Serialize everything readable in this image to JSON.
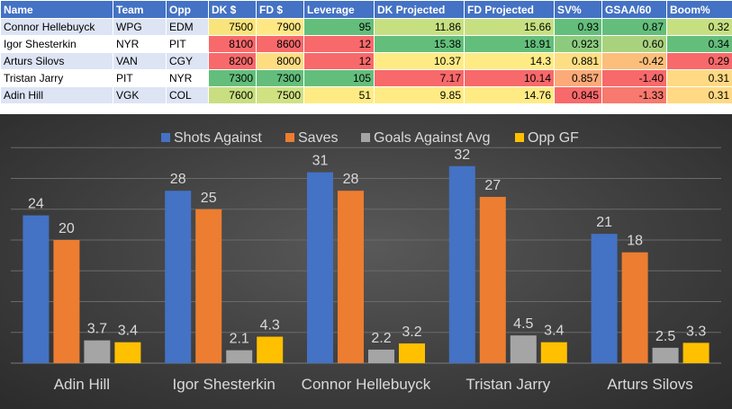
{
  "table": {
    "columns": [
      "Name",
      "Team",
      "Opp",
      "DK $",
      "FD $",
      "Leverage",
      "DK Projected",
      "FD Projected",
      "SV%",
      "GSAA/60",
      "Boom%"
    ],
    "rows": [
      [
        "Connor Hellebuyck",
        "WPG",
        "EDM",
        "7500",
        "7900",
        "95",
        "11.86",
        "15.66",
        "0.93",
        "0.87",
        "0.32"
      ],
      [
        "Igor Shesterkin",
        "NYR",
        "PIT",
        "8100",
        "8600",
        "12",
        "15.38",
        "18.91",
        "0.923",
        "0.60",
        "0.34"
      ],
      [
        "Arturs Silovs",
        "VAN",
        "CGY",
        "8200",
        "8000",
        "12",
        "10.37",
        "14.3",
        "0.881",
        "-0.42",
        "0.29"
      ],
      [
        "Tristan Jarry",
        "PIT",
        "NYR",
        "7300",
        "7300",
        "105",
        "7.17",
        "10.14",
        "0.857",
        "-1.40",
        "0.31"
      ],
      [
        "Adin Hill",
        "VGK",
        "COL",
        "7600",
        "7500",
        "51",
        "9.85",
        "14.76",
        "0.845",
        "-1.33",
        "0.31"
      ]
    ],
    "cell_colors": [
      [
        null,
        null,
        null,
        "#f8e47a",
        "#ffe884",
        "#63be7b",
        "#c6e081",
        "#c6e081",
        "#63be7b",
        "#63be7b",
        "#c6e081"
      ],
      [
        null,
        null,
        null,
        "#f8696b",
        "#f8696b",
        "#f8696b",
        "#63be7b",
        "#63be7b",
        "#8ccb7e",
        "#a9d27f",
        "#63be7b"
      ],
      [
        null,
        null,
        null,
        "#f8696b",
        "#fedd81",
        "#f8696b",
        "#ffeb84",
        "#ffeb84",
        "#fede82",
        "#fbbf7b",
        "#f8696b"
      ],
      [
        null,
        null,
        null,
        "#63be7b",
        "#63be7b",
        "#63be7b",
        "#f8696b",
        "#f8696b",
        "#fcaa78",
        "#f8696b",
        "#ffd983"
      ],
      [
        null,
        null,
        null,
        "#c9de80",
        "#d0e181",
        "#ffeb84",
        "#ffeb84",
        "#ffeb84",
        "#f8696b",
        "#f8796d",
        "#ffd983"
      ]
    ]
  },
  "chart_data": {
    "type": "bar",
    "categories": [
      "Adin Hill",
      "Igor Shesterkin",
      "Connor Hellebuyck",
      "Tristan Jarry",
      "Arturs Silovs"
    ],
    "series": [
      {
        "name": "Shots Against",
        "values": [
          24,
          28,
          31,
          32,
          21
        ],
        "color": "#4472c4"
      },
      {
        "name": "Saves",
        "values": [
          20,
          25,
          28,
          27,
          18
        ],
        "color": "#ed7d31"
      },
      {
        "name": "Goals Against Avg",
        "values": [
          3.7,
          2.1,
          2.2,
          4.5,
          2.5
        ],
        "color": "#a5a5a5"
      },
      {
        "name": "Opp GF",
        "values": [
          3.4,
          4.3,
          3.2,
          3.4,
          3.3
        ],
        "color": "#ffc000"
      }
    ],
    "ylim": [
      0,
      35
    ],
    "grid": true,
    "legend": "top",
    "data_labels": true
  }
}
